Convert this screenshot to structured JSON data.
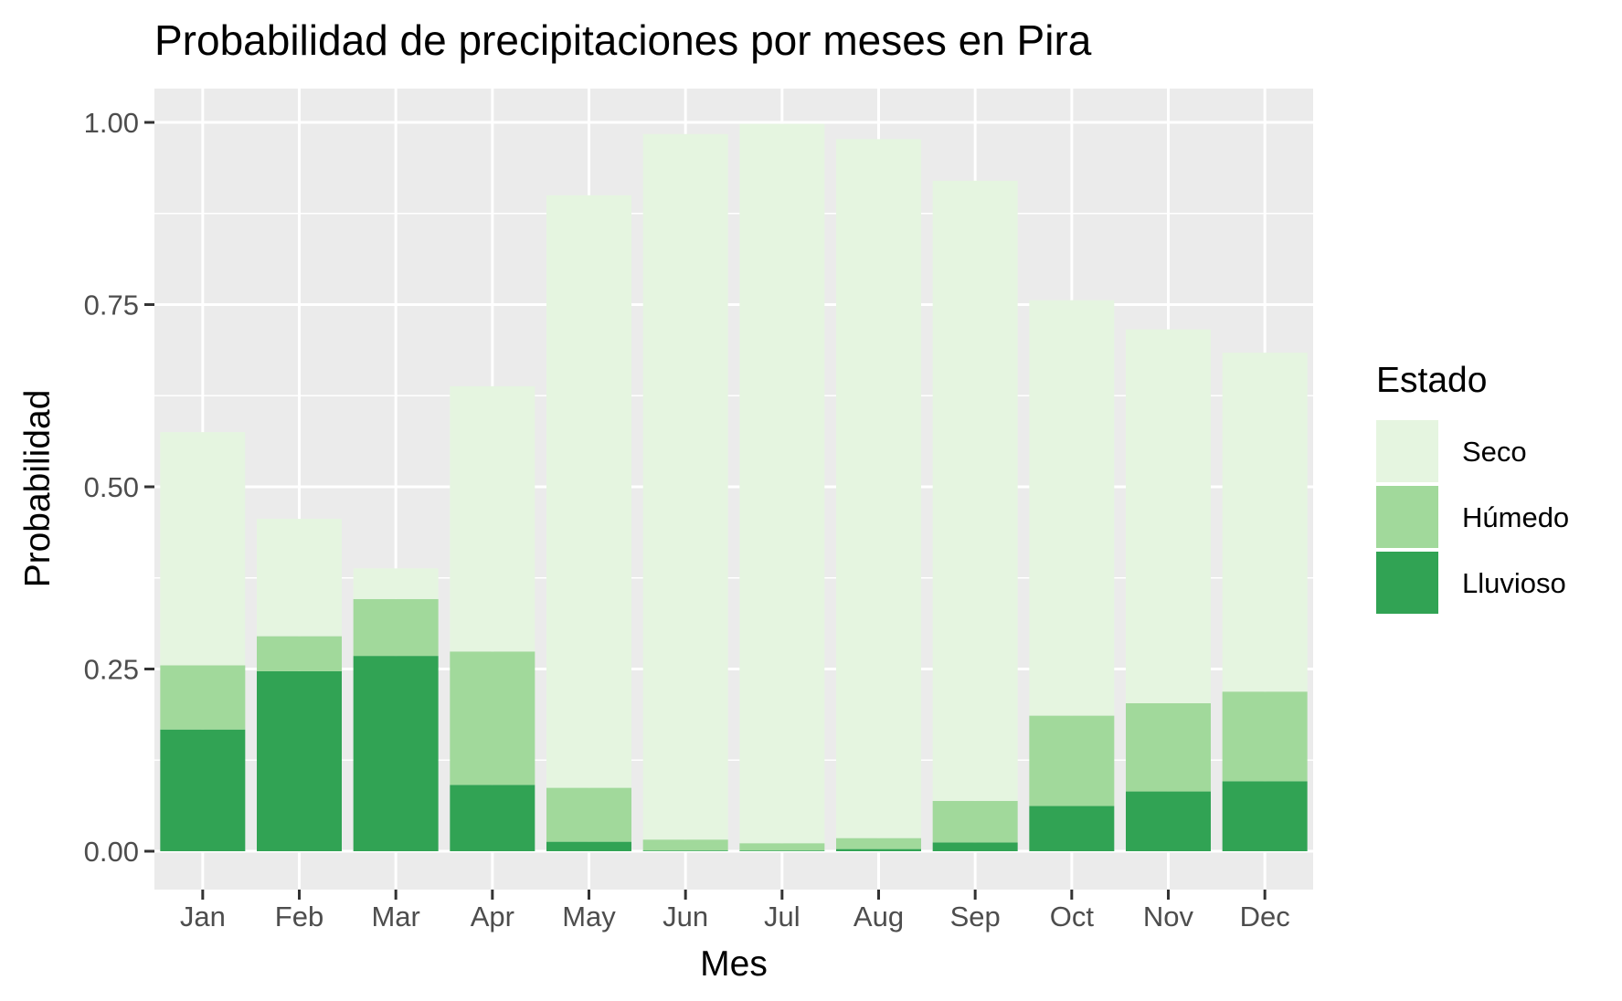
{
  "chart_data": {
    "type": "bar",
    "stacked": true,
    "title": "Probabilidad de precipitaciones por meses en Pira",
    "xlabel": "Mes",
    "ylabel": "Probabilidad",
    "ylim": [
      0,
      1.05
    ],
    "yticks": [
      0,
      0.25,
      0.5,
      0.75,
      1.0
    ],
    "ytick_labels": [
      "0.00",
      "0.25",
      "0.50",
      "0.75",
      "1.00"
    ],
    "grid": true,
    "legend_position": "right",
    "legend_title": "Estado",
    "categories": [
      "Jan",
      "Feb",
      "Mar",
      "Apr",
      "May",
      "Jun",
      "Jul",
      "Aug",
      "Sep",
      "Oct",
      "Nov",
      "Dec"
    ],
    "series": [
      {
        "name": "Lluvioso",
        "color": "#31a354",
        "values": [
          0.167,
          0.247,
          0.268,
          0.091,
          0.013,
          0.001,
          0.001,
          0.003,
          0.012,
          0.062,
          0.082,
          0.096
        ]
      },
      {
        "name": "Húmedo",
        "color": "#a1d99b",
        "values": [
          0.088,
          0.048,
          0.078,
          0.183,
          0.074,
          0.015,
          0.01,
          0.015,
          0.057,
          0.124,
          0.121,
          0.123
        ]
      },
      {
        "name": "Seco",
        "color": "#e5f5e0",
        "values": [
          0.32,
          0.161,
          0.042,
          0.364,
          0.813,
          0.968,
          0.987,
          0.959,
          0.851,
          0.57,
          0.513,
          0.465
        ]
      }
    ],
    "legend_order": [
      "Seco",
      "Húmedo",
      "Lluvioso"
    ]
  }
}
